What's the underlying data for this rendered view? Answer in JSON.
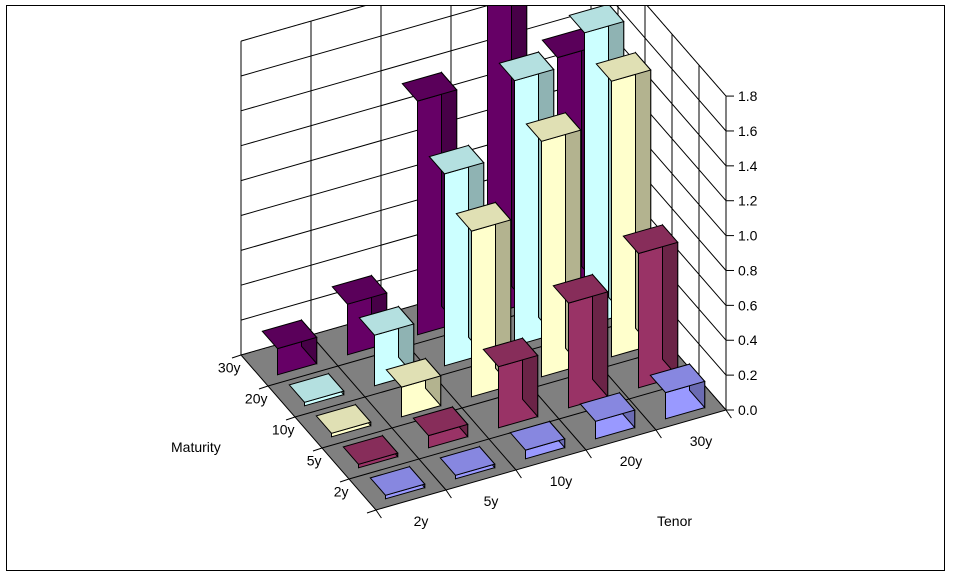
{
  "chart_data": {
    "type": "bar",
    "subtype": "3d-column",
    "title": "",
    "xlabel": "Tenor",
    "ylabel": "Maturity",
    "zlabel": "",
    "tenors": [
      "2y",
      "5y",
      "10y",
      "20y",
      "30y"
    ],
    "maturities": [
      "2y",
      "5y",
      "10y",
      "20y",
      "30y"
    ],
    "z_ticks": [
      "0.0",
      "0.2",
      "0.4",
      "0.6",
      "0.8",
      "1.0",
      "1.2",
      "1.4",
      "1.6",
      "1.8"
    ],
    "zlim": [
      0,
      1.8
    ],
    "grid": true,
    "legend": "none",
    "series": [
      {
        "maturity": "2y",
        "color": "#9999ff",
        "values": [
          0.02,
          0.02,
          0.05,
          0.1,
          0.15
        ]
      },
      {
        "maturity": "5y",
        "color": "#993366",
        "values": [
          0.02,
          0.07,
          0.35,
          0.6,
          0.77
        ]
      },
      {
        "maturity": "10y",
        "color": "#ffffcc",
        "values": [
          0.02,
          0.17,
          0.95,
          1.35,
          1.58
        ]
      },
      {
        "maturity": "20y",
        "color": "#ccffff",
        "values": [
          0.02,
          0.29,
          1.1,
          1.52,
          1.68
        ]
      },
      {
        "maturity": "30y",
        "color": "#660066",
        "values": [
          0.15,
          0.29,
          1.34,
          1.83,
          1.36
        ]
      }
    ],
    "colors": {
      "floor": "#808080",
      "walls": "#ffffff",
      "gridlines": "#000000"
    }
  }
}
